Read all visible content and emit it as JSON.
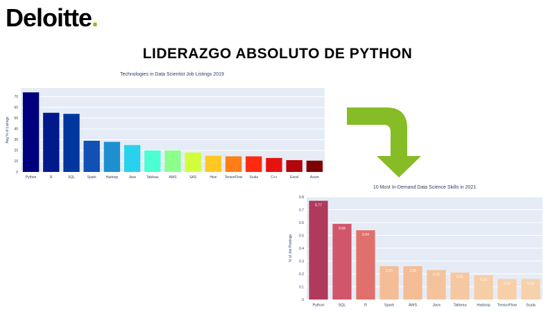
{
  "brand": {
    "name": "Deloitte",
    "dot": "."
  },
  "headline": "LIDERAZGO ABSOLUTO DE PYTHON",
  "chart_data": [
    {
      "type": "bar",
      "title": "Technologies in Data Scientist Job Listings 2019",
      "xlabel": "",
      "ylabel": "Avg % of Listings",
      "categories": [
        "Python",
        "R",
        "SQL",
        "Spark",
        "Hadoop",
        "Java",
        "Tableau",
        "AWS",
        "SAS",
        "Hive",
        "TensorFlow",
        "Scala",
        "C++",
        "Excel",
        "Azure"
      ],
      "values": [
        74,
        55,
        54,
        29,
        28,
        25,
        20,
        20,
        18,
        15,
        14.5,
        14.5,
        13,
        11,
        10.5
      ],
      "colors": [
        "#00007f",
        "#001a8c",
        "#0036a0",
        "#1150b4",
        "#1e90d0",
        "#28d2ec",
        "#4cffd2",
        "#8cff8c",
        "#d2ff3c",
        "#ffc822",
        "#ff7e18",
        "#ff2a10",
        "#e6120e",
        "#b2060a",
        "#7f0000"
      ],
      "yticks": [
        0,
        10,
        20,
        30,
        40,
        50,
        60,
        70
      ],
      "ylim": [
        0,
        78
      ],
      "grid": true,
      "legend": "none"
    },
    {
      "type": "bar",
      "title": "10 Most In-Demand Data Science Skills in 2021",
      "xlabel": "",
      "ylabel": "% of Job Postings",
      "categories": [
        "Python",
        "SQL",
        "R",
        "Spark",
        "AWS",
        "Java",
        "Tableau",
        "Hadoop",
        "TensorFlow",
        "Scala"
      ],
      "values": [
        0.77,
        0.59,
        0.54,
        0.26,
        0.26,
        0.23,
        0.21,
        0.19,
        0.16,
        0.16
      ],
      "labels": [
        "0.77",
        "0.59",
        "0.54",
        "0.26",
        "0.26",
        "0.23",
        "0.21",
        "0.19",
        "0.16",
        "0.16"
      ],
      "colors": [
        "#b03a5c",
        "#d1566a",
        "#e1706c",
        "#f5bd95",
        "#f5bd95",
        "#f5c39b",
        "#f6c8a1",
        "#f7cda6",
        "#f7cfa9",
        "#f7d1ab"
      ],
      "yticks": [
        0,
        0.1,
        0.2,
        0.3,
        0.4,
        0.5,
        0.6,
        0.7,
        0.8
      ],
      "ytick_labels": [
        "0",
        "0.1",
        "0.2",
        "0.3",
        "0.4",
        "0.5",
        "0.6",
        "0.7",
        "0.8"
      ],
      "ylim": [
        0,
        0.8
      ],
      "grid": true,
      "legend": "none"
    }
  ],
  "arrow_color": "#86bc25"
}
